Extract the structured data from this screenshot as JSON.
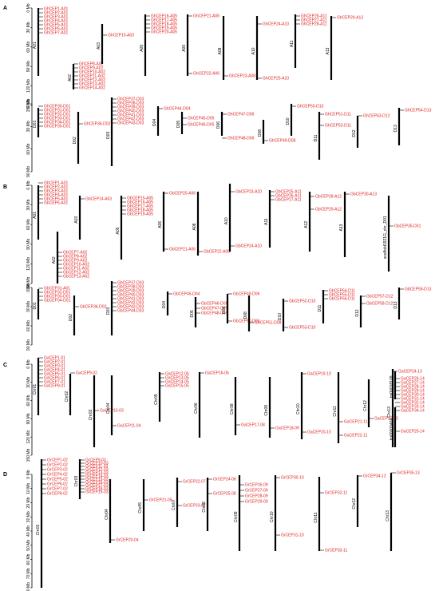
{
  "colors": {
    "gene_label": "#e02020",
    "chromosome": "#000000"
  },
  "panels": [
    {
      "letter": "A",
      "rows": [
        {
          "scale_ticks": [
            "0 Mb",
            "30 Mb",
            "60 Mb",
            "90 Mb",
            "120 Mb",
            "150 Mb"
          ],
          "chromosomes": [
            {
              "name": "A01",
              "genes": [
                "GhCEP1-A01",
                "GhCEP2-A01",
                "GhCEP3-A01",
                "GhCEP4-A01",
                "GhCEP5-A01",
                "GhCEP6-A01",
                "GhCEP7-A01"
              ]
            },
            {
              "name": "A02",
              "genes": [
                "GhCEP8-A02",
                "GhCEP9-A02",
                "GhCEP10-A02",
                "GhCEP11-A02",
                "GhCEP12-A02",
                "GhCEP13-A02",
                "GhCEP14-A02"
              ]
            },
            {
              "name": "A03",
              "genes": [
                "GhCEP15-A03"
              ]
            },
            {
              "name": "A05",
              "genes": [
                "GhCEP16-A05",
                "GhCEP17-A05",
                "GhCEP18-A05",
                "GhCEP19-A05",
                "GhCEP20-A05"
              ]
            },
            {
              "name": "A06",
              "genes": [
                "GhCEP21-A06",
                "GhCEP22-A06"
              ]
            },
            {
              "name": "A08",
              "genes": [
                "GhCEP23-A08"
              ]
            },
            {
              "name": "A10",
              "genes": [
                "GhCEP24-A10",
                "GhCEP25-A10"
              ]
            },
            {
              "name": "A11",
              "genes": [
                "GhCEP26-A11",
                "GhCEP27-A11",
                "GhCEP28-A11"
              ]
            },
            {
              "name": "A13",
              "genes": [
                "GhCEP29-A13"
              ]
            }
          ]
        },
        {
          "scale_ticks": [
            "0 Mb",
            "30 Mb",
            "60 Mb",
            "90 Mb"
          ],
          "chromosomes": [
            {
              "name": "D01",
              "genes": [
                "GhCEP30-D01",
                "GhCEP31-D01",
                "GhCEP32-D01",
                "GhCEP33-D01",
                "GhCEP34-D01",
                "GhCEP35-D01"
              ]
            },
            {
              "name": "D02",
              "genes": [
                "GhCEP36-D02"
              ]
            },
            {
              "name": "D03",
              "genes": [
                "GhCEP37-D03",
                "GhCEP38-D03",
                "GhCEP39-D03",
                "GhCEP40-D03",
                "GhCEP41-D03",
                "GhCEP42-D03",
                "GhCEP43-D03"
              ]
            },
            {
              "name": "D04",
              "genes": [
                "GhCEP44-D04"
              ]
            },
            {
              "name": "D05",
              "genes": [
                "GhCEP45-D05",
                "GhCEP46-D05"
              ]
            },
            {
              "name": "D06",
              "genes": [
                "GhCEP47-D06",
                "GhCEP48-D06"
              ]
            },
            {
              "name": "D08",
              "genes": [
                "GhCEP49-D08"
              ]
            },
            {
              "name": "D10",
              "genes": [
                "GhCEP50-D10"
              ]
            },
            {
              "name": "D11",
              "genes": [
                "GhCEP51-D11",
                "GhCEP52-D11"
              ]
            },
            {
              "name": "D12",
              "genes": [
                "GhCEP53-D12"
              ]
            },
            {
              "name": "D13",
              "genes": [
                "GhCEP54-D13"
              ]
            }
          ]
        }
      ]
    },
    {
      "letter": "B",
      "rows": [
        {
          "scale_ticks": [
            "0 Mb",
            "30 Mb",
            "60 Mb",
            "90 Mb",
            "120 Mb",
            "150 Mb"
          ],
          "chromosomes": [
            {
              "name": "A01",
              "genes": [
                "GbCEP1-A01",
                "GbCEP2-A01",
                "GbCEP3-A01",
                "GbCEP4-A01",
                "GbCEP5-A01",
                "GbCEP6-A01"
              ]
            },
            {
              "name": "A02",
              "genes": [
                "GbCEP7-A02",
                "GbCEP8-A02",
                "GbCEP9-A02",
                "GbCEP10-A02",
                "GbCEP11-A02",
                "GbCEP12-A02",
                "GbCEP13-A02"
              ]
            },
            {
              "name": "A03",
              "genes": [
                "GbCEP14-A03"
              ]
            },
            {
              "name": "A05",
              "genes": [
                "GbCEP15-A05",
                "GbCEP16-A05",
                "GbCEP17-A05",
                "GbCEP18-A05",
                "GbCEP19-A05"
              ]
            },
            {
              "name": "A06",
              "genes": [
                "GbCEP20-A06",
                "GbCEP21-A06"
              ]
            },
            {
              "name": "A08",
              "genes": [
                "GbCEP22-A08"
              ]
            },
            {
              "name": "A10",
              "genes": [
                "GbCEP23-A10",
                "GbCEP24-A10"
              ]
            },
            {
              "name": "A11",
              "genes": [
                "GbCEP25-A11",
                "GbCEP26-A11",
                "GbCEP27-A11"
              ]
            },
            {
              "name": "A12",
              "genes": [
                "GbCEP28-A12",
                "GbCEP29-A12"
              ]
            },
            {
              "name": "A13",
              "genes": [
                "GbCEP30-A13"
              ]
            },
            {
              "name": "scaffold1921G_chr_D01",
              "genes": [
                "GbCEP35-D01"
              ]
            }
          ]
        },
        {
          "scale_ticks": [
            "0 Mb",
            "30 Mb",
            "60 Mb",
            "90 Mb"
          ],
          "chromosomes": [
            {
              "name": "D01",
              "genes": [
                "GbCEP31-A01",
                "GbCEP32-D01",
                "GbCEP33-D01",
                "GbCEP34-D01"
              ]
            },
            {
              "name": "D02",
              "genes": [
                "GbCEP36-D02"
              ]
            },
            {
              "name": "D03",
              "genes": [
                "GbCEP37-D03",
                "GbCEP38-D03",
                "GbCEP39-D03",
                "GbCEP40-D03",
                "GbCEP41-D03",
                "GbCEP42-D03",
                "GbCEP43-D03",
                "GbCEP44-D03"
              ]
            },
            {
              "name": "D04",
              "genes": [
                "GbCEP45-D04"
              ]
            },
            {
              "name": "D05",
              "genes": [
                "GbCEP46-D05",
                "GbCEP47-D05",
                "GbCEP48-D05"
              ]
            },
            {
              "name": "D06",
              "genes": [
                "GbCEP49-D06",
                "GbCEP50-D06"
              ]
            },
            {
              "name": "D08",
              "genes": [
                "GbCEP51-D08"
              ]
            },
            {
              "name": "D10",
              "genes": [
                "GbCEP52-D10",
                "GbCEP53-D10"
              ]
            },
            {
              "name": "D11",
              "genes": [
                "GbCEP54-D11",
                "GbCEP55-D11",
                "GbCEP56-D11"
              ]
            },
            {
              "name": "D12",
              "genes": [
                "GbCEP57-D12",
                "GbCEP58-D12"
              ]
            },
            {
              "name": "D13",
              "genes": [
                "GbCEP59-D13"
              ]
            }
          ]
        }
      ]
    },
    {
      "letter": "C",
      "rows": [
        {
          "scale_ticks": [
            "0 Mb",
            "30 Mb",
            "60 Mb",
            "90 Mb",
            "120 Mb",
            "150 Mb"
          ],
          "chromosomes": [
            {
              "name": "Chr01",
              "genes": [
                "GaCEP1-01",
                "GaCEP2-01",
                "GaCEP3-01",
                "GaCEP4-01",
                "GaCEP5-01",
                "GaCEP6-01",
                "GaCEP7-01",
                "GaCEP8-01"
              ]
            },
            {
              "name": "Chr02",
              "genes": [
                "GaCEP9-02"
              ]
            },
            {
              "name": "Chr03",
              "genes": [
                "GaCEP10-03"
              ]
            },
            {
              "name": "Chr04",
              "genes": [
                "GaCEP11-04"
              ]
            },
            {
              "name": "Chr05",
              "genes": [
                "GaCEP12-05",
                "GaCEP13-05",
                "GaCEP14-05",
                "GaCEP15-05"
              ]
            },
            {
              "name": "Chr06",
              "genes": [
                "GaCEP16-06"
              ]
            },
            {
              "name": "Chr08",
              "genes": [
                "GaCEP17-08"
              ]
            },
            {
              "name": "Chr09",
              "genes": [
                "GaCEP18-09"
              ]
            },
            {
              "name": "Chr10",
              "genes": [
                "GaCEP19-10",
                "GaCEP20-10"
              ]
            },
            {
              "name": "Chr11",
              "genes": [
                "GaCEP21-11",
                "GaCEP22-11"
              ]
            },
            {
              "name": "Chr12",
              "genes": [
                "GaCEP23-12"
              ]
            },
            {
              "name": "Chr13",
              "genes": [
                "GaCEP24-13"
              ]
            },
            {
              "name": "tig00018109",
              "genes": [
                "GaCEP26-14",
                "GaCEP27-14",
                "GaCEP28-14",
                "GaCEP29-14",
                "GaCEP30-14",
                "GaCEP31-14",
                "GaCEP32-14",
                "GaCEP33-14",
                "GaCEP34-14"
              ]
            },
            {
              "name": "tig00000468",
              "genes": [
                "GaCEP25-14"
              ]
            }
          ]
        }
      ]
    },
    {
      "letter": "D",
      "rows": [
        {
          "scale_ticks": [
            "0 Mb",
            "10 Mb",
            "20 Mb",
            "30 Mb",
            "40 Mb",
            "50 Mb",
            "60 Mb",
            "70 Mb",
            "80 Mb"
          ],
          "chromosomes": [
            {
              "name": "Chr02",
              "genes": [
                "GrCEP1-02",
                "GrCEP2-02",
                "GrCEP3-02",
                "GrCEP4-02",
                "GrCEP5-02",
                "GrCEP6-02",
                "GrCEP7-02",
                "GrCEP8-02"
              ]
            },
            {
              "name": "Chr03",
              "genes": [
                "GrCEP9-03",
                "GrCEP10-03",
                "GrCEP11-03",
                "GrCEP12-03",
                "GrCEP13-03",
                "GrCEP14-03",
                "GrCEP15-03",
                "GrCEP16-03",
                "GrCEP17-03",
                "GrCEP18-03",
                "GrCEP19-03"
              ]
            },
            {
              "name": "Chr04",
              "genes": [
                "GrCEP20-04"
              ]
            },
            {
              "name": "Chr05",
              "genes": [
                "GrCEP21-05"
              ]
            },
            {
              "name": "Chr07",
              "genes": [
                "GrCEP22-07",
                "GrCEP23-07"
              ]
            },
            {
              "name": "Chr08",
              "genes": [
                "GrCEP24-08",
                "GrCEP25-08"
              ]
            },
            {
              "name": "Chr09",
              "genes": [
                "GrCEP26-09",
                "GrCEP27-09",
                "GrCEP28-09",
                "GrCEP29-09"
              ]
            },
            {
              "name": "Chr10",
              "genes": [
                "GrCEP30-10",
                "GrCEP31-10"
              ]
            },
            {
              "name": "Chr11",
              "genes": [
                "GrCEP32-11",
                "GrCEP33-11"
              ]
            },
            {
              "name": "Chr12",
              "genes": [
                "GrCEP34-12"
              ]
            },
            {
              "name": "Chr13",
              "genes": [
                "GrCEP35-13"
              ]
            }
          ]
        }
      ]
    }
  ]
}
